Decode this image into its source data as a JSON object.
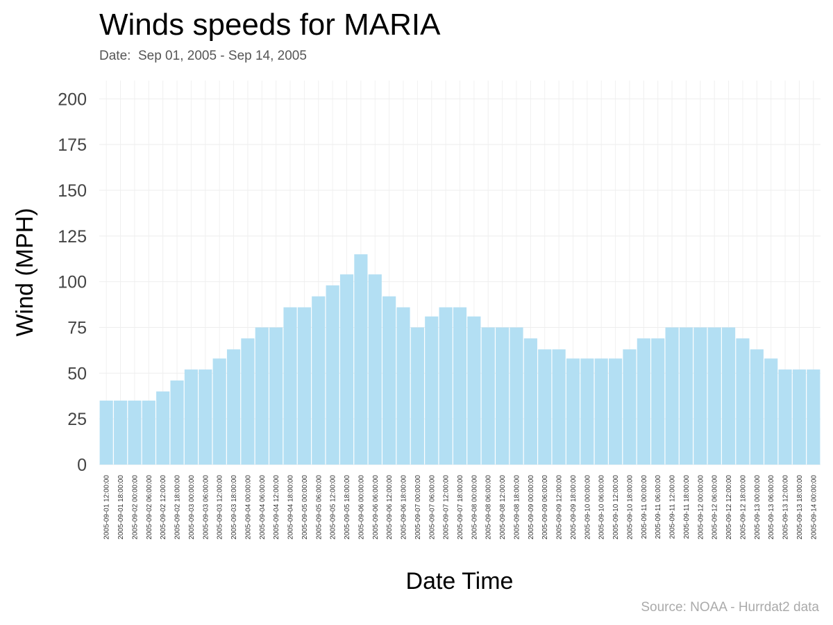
{
  "chart_data": {
    "type": "bar",
    "title": "Winds speeds for MARIA",
    "subtitle": "Date:  Sep 01, 2005 - Sep 14, 2005",
    "xlabel": "Date Time",
    "ylabel": "Wind (MPH)",
    "caption": "Source: NOAA - Hurrdat2 data",
    "ylim": [
      0,
      200
    ],
    "yticks": [
      0,
      25,
      50,
      75,
      100,
      125,
      150,
      175,
      200
    ],
    "grid": true,
    "legend": "none",
    "bar_color": "#b3dff3",
    "categories": [
      "2005-09-01 12:00:00",
      "2005-09-01 18:00:00",
      "2005-09-02 00:00:00",
      "2005-09-02 06:00:00",
      "2005-09-02 12:00:00",
      "2005-09-02 18:00:00",
      "2005-09-03 00:00:00",
      "2005-09-03 06:00:00",
      "2005-09-03 12:00:00",
      "2005-09-03 18:00:00",
      "2005-09-04 00:00:00",
      "2005-09-04 06:00:00",
      "2005-09-04 12:00:00",
      "2005-09-04 18:00:00",
      "2005-09-05 00:00:00",
      "2005-09-05 06:00:00",
      "2005-09-05 12:00:00",
      "2005-09-05 18:00:00",
      "2005-09-06 00:00:00",
      "2005-09-06 06:00:00",
      "2005-09-06 12:00:00",
      "2005-09-06 18:00:00",
      "2005-09-07 00:00:00",
      "2005-09-07 06:00:00",
      "2005-09-07 12:00:00",
      "2005-09-07 18:00:00",
      "2005-09-08 00:00:00",
      "2005-09-08 06:00:00",
      "2005-09-08 12:00:00",
      "2005-09-08 18:00:00",
      "2005-09-09 00:00:00",
      "2005-09-09 06:00:00",
      "2005-09-09 12:00:00",
      "2005-09-09 18:00:00",
      "2005-09-10 00:00:00",
      "2005-09-10 06:00:00",
      "2005-09-10 12:00:00",
      "2005-09-10 18:00:00",
      "2005-09-11 00:00:00",
      "2005-09-11 06:00:00",
      "2005-09-11 12:00:00",
      "2005-09-11 18:00:00",
      "2005-09-12 00:00:00",
      "2005-09-12 06:00:00",
      "2005-09-12 12:00:00",
      "2005-09-12 18:00:00",
      "2005-09-13 00:00:00",
      "2005-09-13 06:00:00",
      "2005-09-13 12:00:00",
      "2005-09-13 18:00:00",
      "2005-09-14 00:00:00"
    ],
    "values": [
      35,
      35,
      35,
      35,
      40,
      46,
      52,
      52,
      58,
      63,
      69,
      75,
      75,
      86,
      86,
      92,
      98,
      104,
      115,
      104,
      92,
      86,
      75,
      81,
      86,
      86,
      81,
      75,
      75,
      75,
      69,
      63,
      63,
      58,
      58,
      58,
      58,
      63,
      69,
      69,
      75,
      75,
      75,
      75,
      75,
      69,
      63,
      58,
      52,
      52,
      52
    ]
  }
}
